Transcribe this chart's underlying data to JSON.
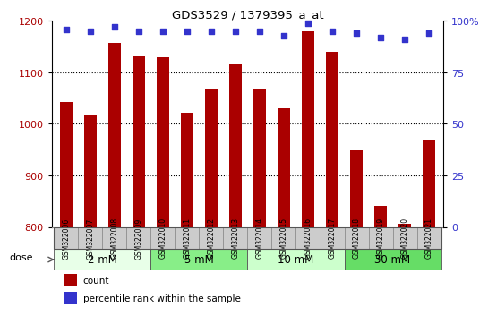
{
  "title": "GDS3529 / 1379395_a_at",
  "samples": [
    "GSM322006",
    "GSM322007",
    "GSM322008",
    "GSM322009",
    "GSM322010",
    "GSM322011",
    "GSM322012",
    "GSM322013",
    "GSM322014",
    "GSM322015",
    "GSM322016",
    "GSM322017",
    "GSM322018",
    "GSM322019",
    "GSM322020",
    "GSM322021"
  ],
  "counts": [
    1043,
    1018,
    1158,
    1132,
    1130,
    1022,
    1067,
    1118,
    1067,
    1030,
    1180,
    1140,
    948,
    840,
    806,
    968
  ],
  "percentiles": [
    96,
    95,
    97,
    95,
    95,
    95,
    95,
    95,
    95,
    93,
    99,
    95,
    94,
    92,
    91,
    94
  ],
  "bar_color": "#AA0000",
  "percentile_color": "#3333CC",
  "ylim_left": [
    800,
    1200
  ],
  "ylim_right": [
    0,
    100
  ],
  "yticks_left": [
    800,
    900,
    1000,
    1100,
    1200
  ],
  "yticks_right_vals": [
    0,
    25,
    50,
    75,
    100
  ],
  "hlines": [
    900,
    1000,
    1100
  ],
  "doses": [
    {
      "label": "2 mM",
      "start": 0,
      "end": 3,
      "color": "#e8ffe8"
    },
    {
      "label": "5 mM",
      "start": 4,
      "end": 7,
      "color": "#88ee88"
    },
    {
      "label": "10 mM",
      "start": 8,
      "end": 11,
      "color": "#ccffcc"
    },
    {
      "label": "30 mM",
      "start": 12,
      "end": 15,
      "color": "#66dd66"
    }
  ],
  "dose_label": "dose",
  "legend_count_label": "count",
  "legend_pct_label": "percentile rank within the sample",
  "sample_box_color": "#cccccc",
  "sample_box_edge": "#888888"
}
